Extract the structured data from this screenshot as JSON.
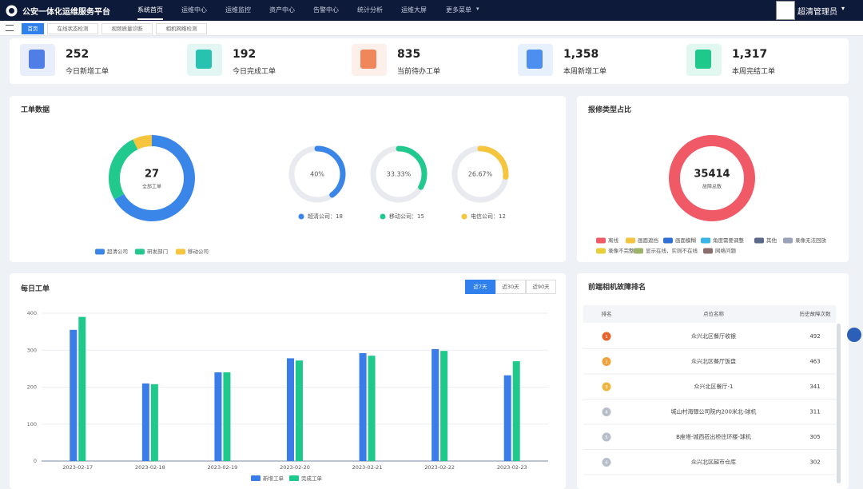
{
  "header": {
    "title": "公安一体化运维服务平台",
    "menu": [
      "系统首页",
      "运维中心",
      "运维监控",
      "资产中心",
      "告警中心",
      "统计分析",
      "运维大屏",
      "更多菜单"
    ],
    "user": "超清管理员"
  },
  "tabs": [
    "首页",
    "在线状态检测",
    "视频质量诊断",
    "相机网络检测"
  ],
  "stats": [
    {
      "value": "252",
      "label": "今日新增工单",
      "color": "#4f7fe6"
    },
    {
      "value": "192",
      "label": "今日完成工单",
      "color": "#27c3b0"
    },
    {
      "value": "835",
      "label": "当前待办工单",
      "color": "#f0875a"
    },
    {
      "value": "1,358",
      "label": "本周新增工单",
      "color": "#4d8ff0"
    },
    {
      "value": "1,317",
      "label": "本周完结工单",
      "color": "#1fc98c"
    }
  ],
  "chart_data": [
    {
      "type": "donut",
      "title": "工单数据",
      "center_value": 27,
      "center_label": "全部工单",
      "categories": [
        "超清公司",
        "研发部门",
        "移动公司"
      ],
      "values": [
        18,
        7,
        2
      ],
      "colors": [
        "#3a86e8",
        "#22c98e",
        "#f4c53d"
      ]
    },
    {
      "type": "gauge",
      "categories": [
        "超清公司：18",
        "移动公司：15",
        "电信公司：12"
      ],
      "values": [
        40,
        33.33,
        26.67
      ],
      "value_labels": [
        "40%",
        "33.33%",
        "26.67%"
      ],
      "colors": [
        "#3a86e8",
        "#22c98e",
        "#f4c53d"
      ]
    },
    {
      "type": "donut",
      "title": "报修类型占比",
      "center_value": 35414,
      "center_label": "故障总数",
      "categories": [
        "离线",
        "画面遮挡",
        "画面模糊",
        "角度需要调整",
        "其他",
        "录像无法回放",
        "录像不完整",
        "显示在线，实则不在线",
        "网络问题"
      ],
      "values": [
        35414,
        0,
        0,
        0,
        0,
        0,
        0,
        0,
        0
      ],
      "colors": [
        "#f05a66",
        "#f5c342",
        "#2f6fd6",
        "#36b5e8",
        "#5b6a8a",
        "#9aa3b8",
        "#e6cf3b",
        "#9db36a",
        "#8a6e6e"
      ]
    },
    {
      "type": "bar",
      "title": "每日工单",
      "ranges": [
        "近7天",
        "近30天",
        "近90天"
      ],
      "categories": [
        "2023-02-17",
        "2023-02-18",
        "2023-02-19",
        "2023-02-20",
        "2023-02-21",
        "2023-02-22",
        "2023-02-23"
      ],
      "series": [
        {
          "name": "新增工单",
          "color": "#3a7ce8",
          "values": [
            355,
            210,
            240,
            278,
            292,
            303,
            232
          ]
        },
        {
          "name": "完成工单",
          "color": "#1fc98c",
          "values": [
            390,
            208,
            240,
            272,
            285,
            298,
            270
          ]
        }
      ],
      "ylim": [
        0,
        400
      ],
      "yticks": [
        0,
        100,
        200,
        300,
        400
      ],
      "grid": true
    }
  ],
  "ranking": {
    "title": "前端相机故障排名",
    "columns": [
      "排名",
      "点位名称",
      "历史故障次数"
    ],
    "rows": [
      [
        1,
        "众兴北区餐厅收银",
        492
      ],
      [
        2,
        "众兴北区餐厅饭盘",
        463
      ],
      [
        3,
        "众兴北区餐厅-1",
        341
      ],
      [
        4,
        "城山村海银公司院内200米北-球机",
        311
      ],
      [
        5,
        "B座塔-城西莅出桥往环楼-球机",
        305
      ],
      [
        6,
        "众兴北区超市仓库",
        302
      ]
    ]
  }
}
